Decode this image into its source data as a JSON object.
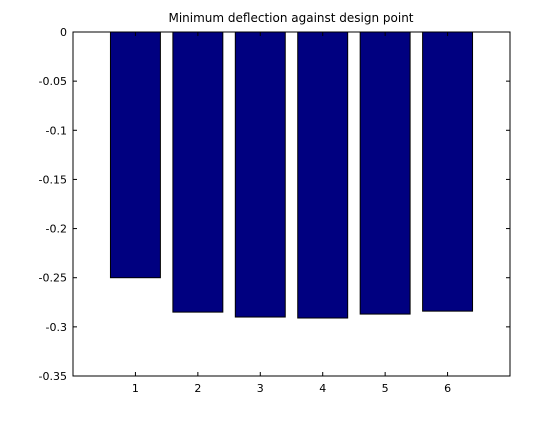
{
  "chart_data": {
    "type": "bar",
    "title": "Minimum deflection against design point",
    "xlabel": "",
    "ylabel": "",
    "categories": [
      "1",
      "2",
      "3",
      "4",
      "5",
      "6"
    ],
    "values": [
      -0.25,
      -0.285,
      -0.29,
      -0.291,
      -0.287,
      -0.284
    ],
    "ylim": [
      -0.35,
      0
    ],
    "yticks": [
      0,
      -0.05,
      -0.1,
      -0.15,
      -0.2,
      -0.25,
      -0.3,
      -0.35
    ],
    "ytick_labels": [
      "0",
      "-0.05",
      "-0.1",
      "-0.15",
      "-0.2",
      "-0.25",
      "-0.3",
      "-0.35"
    ],
    "xlim": [
      0,
      7
    ],
    "grid": false,
    "bar_color": "#000080",
    "bar_edge_color": "#000000"
  }
}
